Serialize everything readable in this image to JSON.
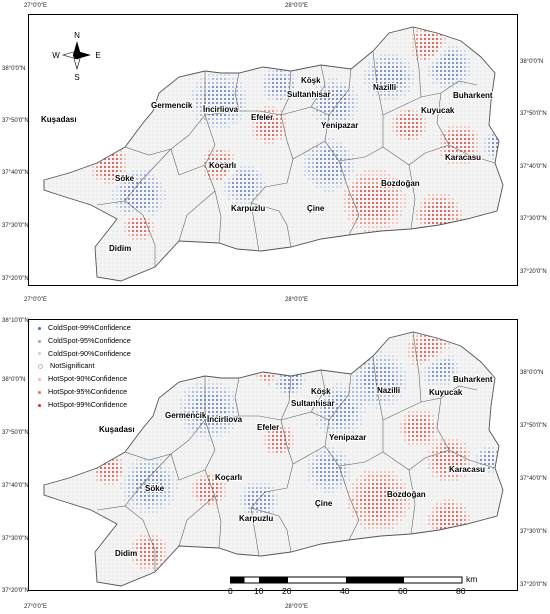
{
  "maps": [
    {
      "id": "top",
      "top_ticks": [
        "27°0'0\"E",
        "28°0'0\"E"
      ],
      "bottom_ticks": [
        "27°0'0\"E",
        "28°0'0\"E"
      ],
      "left_ticks": [
        "38°0'0\"N",
        "37°50'0\"N",
        "37°40'0\"N",
        "37°30'0\"N",
        "37°20'0\"N"
      ],
      "right_ticks": [
        "38°0'0\"N",
        "37°50'0\"N",
        "37°40'0\"N",
        "37°30'0\"N",
        "37°20'0\"N"
      ]
    },
    {
      "id": "bottom",
      "left_ticks": [
        "38°10'0\"N",
        "38°0'0\"N",
        "37°50'0\"N",
        "37°40'0\"N",
        "37°30'0\"N",
        "37°20'0\"N"
      ],
      "right_ticks": [
        "38°0'0\"N",
        "37°50'0\"N",
        "37°40'0\"N",
        "37°30'0\"N",
        "37°20'0\"N"
      ],
      "bottom_ticks": [
        "27°0'0\"E",
        "28°0'0\"E"
      ]
    }
  ],
  "compass": {
    "n": "N",
    "s": "S",
    "e": "E",
    "w": "W"
  },
  "districts": [
    "Buharkent",
    "Köşk",
    "Nazilli",
    "Kuyucak",
    "Sultanhisar",
    "Germencik",
    "İncirliova",
    "Efeler",
    "Kuşadası",
    "Yenipazar",
    "Karacasu",
    "Söke",
    "Koçarlı",
    "Bozdoğan",
    "Çine",
    "Karpuzlu",
    "Didim"
  ],
  "legend": [
    {
      "label": "ColdSpot-99%Confidence",
      "color": "#4a6fb5"
    },
    {
      "label": "ColdSpot-95%Confidence",
      "color": "#8fa8d4"
    },
    {
      "label": "ColdSpot-90%Confidence",
      "color": "#c3cfe6"
    },
    {
      "label": "NotSignificant",
      "color": "#ffffff"
    },
    {
      "label": "HotSpot-90%Confidence",
      "color": "#f2b8a8"
    },
    {
      "label": "HotSpot-95%Confidence",
      "color": "#e7725d"
    },
    {
      "label": "HotSpot-99%Confidence",
      "color": "#d4322a"
    }
  ],
  "scalebar": {
    "labels": [
      "0",
      "10",
      "20",
      "40",
      "60",
      "80"
    ],
    "unit": "km"
  }
}
